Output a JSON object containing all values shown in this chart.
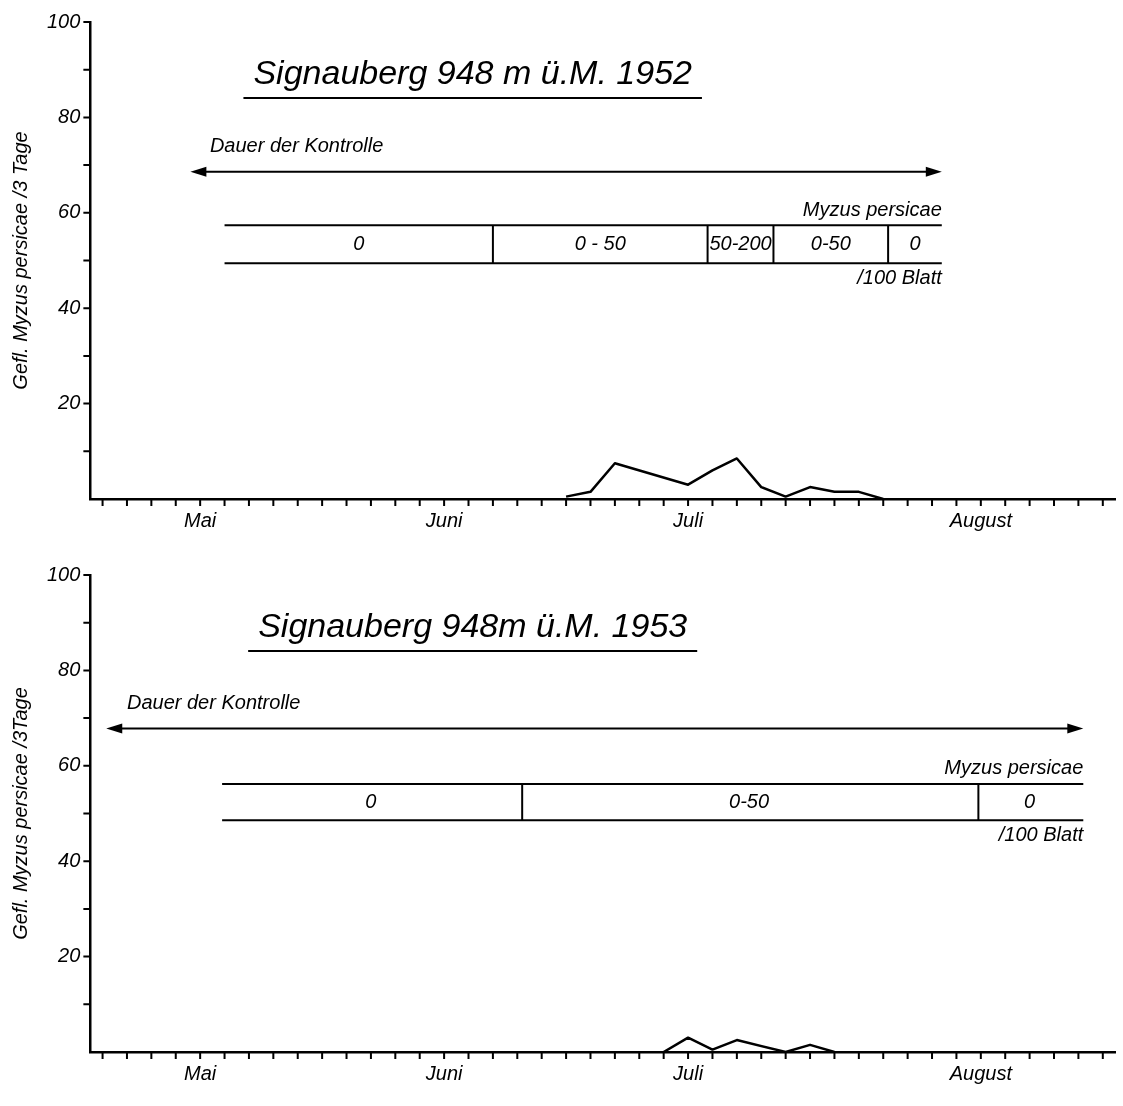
{
  "chart_data": [
    {
      "type": "line",
      "title": "Signauberg 948 m ü.M. 1952",
      "ylabel": "Gefl. Myzus persicae /3 Tage",
      "categories": [
        null,
        null,
        null,
        null,
        "Mai",
        null,
        null,
        null,
        null,
        null,
        null,
        null,
        null,
        null,
        "Juni",
        null,
        null,
        null,
        null,
        null,
        null,
        null,
        null,
        null,
        "Juli",
        null,
        null,
        null,
        null,
        null,
        null,
        null,
        null,
        null,
        null,
        null,
        "August",
        null,
        null,
        null,
        null,
        null
      ],
      "series": [
        {
          "color": "#000000",
          "values": [
            null,
            null,
            null,
            null,
            null,
            null,
            null,
            null,
            null,
            null,
            null,
            null,
            null,
            null,
            null,
            null,
            null,
            null,
            null,
            0.5,
            1.5,
            7.5,
            null,
            null,
            3,
            6,
            8.5,
            2.5,
            0.5,
            2.5,
            1.5,
            1.5,
            0,
            null,
            null,
            null,
            null,
            null,
            null,
            null,
            null,
            null
          ]
        }
      ],
      "ylim": [
        0,
        100
      ],
      "yticks": [
        {
          "value": 10,
          "label": null
        },
        20,
        {
          "value": 30,
          "label": null
        },
        40,
        {
          "value": 50,
          "label": null
        },
        60,
        {
          "value": 70,
          "label": null
        },
        80,
        {
          "value": 90,
          "label": null
        },
        100
      ],
      "annotations": [
        "Dauer der Kontrolle",
        "0",
        "0 - 50",
        "50-200",
        "0-50",
        "0",
        "Myzus persicae",
        "/100 Blatt"
      ],
      "grid": false,
      "legend": false,
      "marker": "none",
      "line_style": "solid"
    },
    {
      "type": "line",
      "title": "Signauberg 948m ü.M. 1953",
      "ylabel": "Gefl. Myzus persicae /3Tage",
      "categories": [
        null,
        null,
        null,
        null,
        "Mai",
        null,
        null,
        null,
        null,
        null,
        null,
        null,
        null,
        null,
        "Juni",
        null,
        null,
        null,
        null,
        null,
        null,
        null,
        null,
        null,
        "Juli",
        null,
        null,
        null,
        null,
        null,
        null,
        null,
        null,
        null,
        null,
        null,
        "August",
        null,
        null,
        null,
        null,
        null
      ],
      "series": [
        {
          "color": "#000000",
          "values": [
            null,
            null,
            null,
            null,
            null,
            null,
            null,
            null,
            null,
            null,
            null,
            null,
            null,
            null,
            null,
            null,
            null,
            null,
            null,
            null,
            null,
            null,
            null,
            0,
            3,
            0.5,
            2.5,
            null,
            0,
            1.5,
            0,
            null,
            null,
            null,
            null,
            null,
            null,
            null,
            null,
            null,
            null,
            null
          ]
        }
      ],
      "ylim": [
        0,
        100
      ],
      "yticks": [
        {
          "value": 10,
          "label": null
        },
        20,
        {
          "value": 30,
          "label": null
        },
        40,
        {
          "value": 50,
          "label": null
        },
        60,
        {
          "value": 70,
          "label": null
        },
        80,
        {
          "value": 90,
          "label": null
        },
        100
      ],
      "annotations": [
        "Dauer der Kontrolle",
        "0",
        "0-50",
        "0",
        "Myzus persicae",
        "/100 Blatt"
      ],
      "grid": false,
      "legend": false,
      "marker": "none",
      "line_style": "solid"
    }
  ]
}
